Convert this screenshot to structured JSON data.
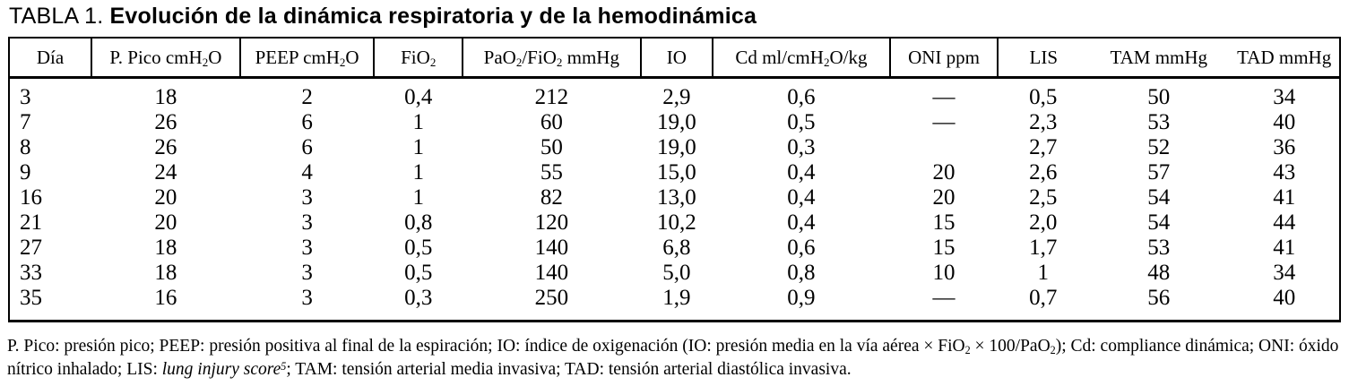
{
  "title": {
    "prefix": "TABLA 1. ",
    "main": "Evolución de la dinámica respiratoria y de la hemodinámica"
  },
  "table": {
    "headers": [
      {
        "name": "dia",
        "segs": [
          {
            "t": "Día"
          }
        ]
      },
      {
        "name": "p-pico",
        "segs": [
          {
            "t": "P. Pico cmH"
          },
          {
            "t": "2",
            "s": "sub"
          },
          {
            "t": "O"
          }
        ]
      },
      {
        "name": "peep",
        "segs": [
          {
            "t": "PEEP cmH"
          },
          {
            "t": "2",
            "s": "sub"
          },
          {
            "t": "O"
          }
        ]
      },
      {
        "name": "fio2",
        "segs": [
          {
            "t": "FiO"
          },
          {
            "t": "2",
            "s": "sub"
          }
        ]
      },
      {
        "name": "pao2-fio2",
        "segs": [
          {
            "t": "PaO"
          },
          {
            "t": "2",
            "s": "sub"
          },
          {
            "t": "/FiO"
          },
          {
            "t": "2",
            "s": "sub"
          },
          {
            "t": " mmHg"
          }
        ]
      },
      {
        "name": "io",
        "segs": [
          {
            "t": "IO"
          }
        ]
      },
      {
        "name": "cd",
        "segs": [
          {
            "t": "Cd ml/cmH"
          },
          {
            "t": "2",
            "s": "sub"
          },
          {
            "t": "O/kg"
          }
        ]
      },
      {
        "name": "oni",
        "segs": [
          {
            "t": "ONI ppm"
          }
        ]
      },
      {
        "name": "lis",
        "segs": [
          {
            "t": "LIS"
          }
        ]
      },
      {
        "name": "tam",
        "segs": [
          {
            "t": "TAM mmHg"
          }
        ]
      },
      {
        "name": "tad",
        "segs": [
          {
            "t": "TAD mmHg"
          }
        ]
      }
    ],
    "rows": [
      [
        "3",
        "18",
        "2",
        "0,4",
        "212",
        "2,9",
        "0,6",
        "—",
        "0,5",
        "50",
        "34"
      ],
      [
        "7",
        "26",
        "6",
        "1",
        "60",
        "19,0",
        "0,5",
        "—",
        "2,3",
        "53",
        "40"
      ],
      [
        "8",
        "26",
        "6",
        "1",
        "50",
        "19,0",
        "0,3",
        "",
        "2,7",
        "52",
        "36"
      ],
      [
        "9",
        "24",
        "4",
        "1",
        "55",
        "15,0",
        "0,4",
        "20",
        "2,6",
        "57",
        "43"
      ],
      [
        "16",
        "20",
        "3",
        "1",
        "82",
        "13,0",
        "0,4",
        "20",
        "2,5",
        "54",
        "41"
      ],
      [
        "21",
        "20",
        "3",
        "0,8",
        "120",
        "10,2",
        "0,4",
        "15",
        "2,0",
        "54",
        "44"
      ],
      [
        "27",
        "18",
        "3",
        "0,5",
        "140",
        "6,8",
        "0,6",
        "15",
        "1,7",
        "53",
        "41"
      ],
      [
        "33",
        "18",
        "3",
        "0,5",
        "140",
        "5,0",
        "0,8",
        "10",
        "1",
        "48",
        "34"
      ],
      [
        "35",
        "16",
        "3",
        "0,3",
        "250",
        "1,9",
        "0,9",
        "—",
        "0,7",
        "56",
        "40"
      ]
    ]
  },
  "footnote": {
    "segs": [
      {
        "t": "P. Pico: presión pico; PEEP: presión positiva al final de la espiración; IO: índice de oxigenación (IO: presión media en la vía aérea × FiO"
      },
      {
        "t": "2",
        "s": "sub"
      },
      {
        "t": " × 100/PaO"
      },
      {
        "t": "2",
        "s": "sub"
      },
      {
        "t": "); Cd: compliance dinámica; ONI: óxido nítrico inhalado; LIS: "
      },
      {
        "t": "lung injury score",
        "s": "i"
      },
      {
        "t": "5",
        "s": "sup"
      },
      {
        "t": "; TAM: tensión arterial media invasiva; TAD: tensión arterial diastólica invasiva."
      }
    ]
  }
}
